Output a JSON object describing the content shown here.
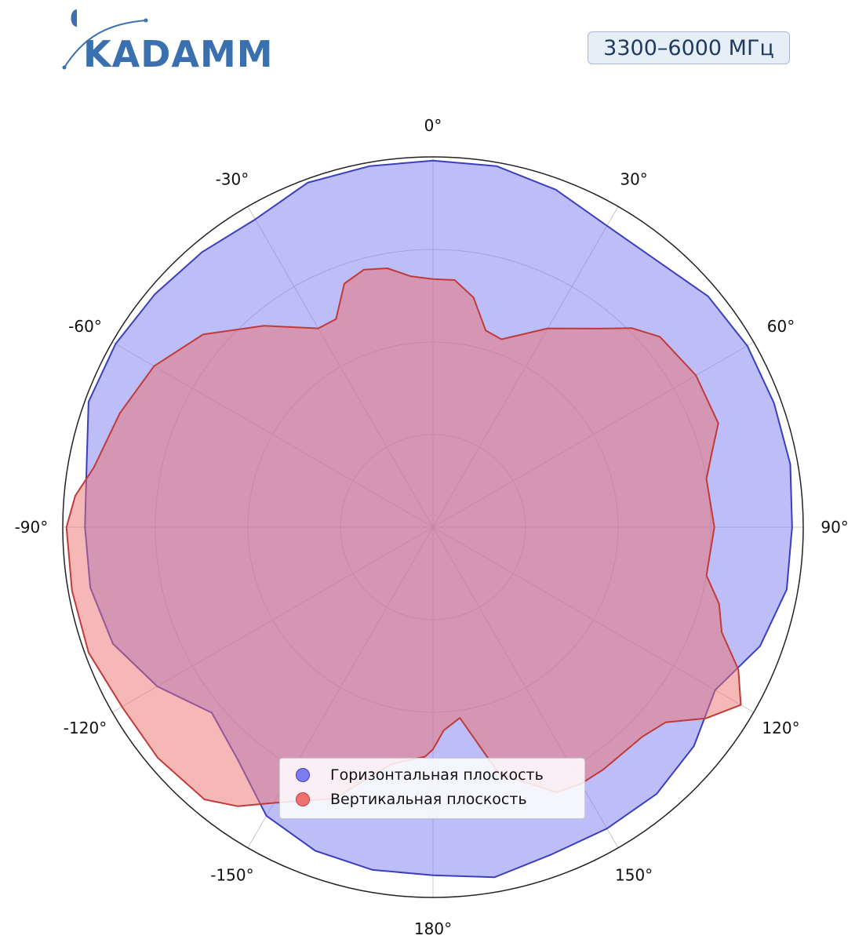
{
  "brand": {
    "name": "KADAMM",
    "color": "#3a6fb0"
  },
  "badge": {
    "text": "3300–6000 МГц"
  },
  "chart_data": {
    "type": "polar-area",
    "angle_ticks": [
      {
        "deg": 0,
        "label": "0°"
      },
      {
        "deg": 30,
        "label": "30°"
      },
      {
        "deg": 60,
        "label": "60°"
      },
      {
        "deg": 90,
        "label": "90°"
      },
      {
        "deg": 120,
        "label": "120°"
      },
      {
        "deg": 150,
        "label": "150°"
      },
      {
        "deg": 180,
        "label": "180°"
      },
      {
        "deg": -150,
        "label": "-150°"
      },
      {
        "deg": -120,
        "label": "-120°"
      },
      {
        "deg": -90,
        "label": "-90°"
      },
      {
        "deg": -60,
        "label": "-60°"
      },
      {
        "deg": -30,
        "label": "-30°"
      }
    ],
    "radial_rings": [
      0.25,
      0.5,
      0.75,
      1.0
    ],
    "radial_labels_shown": false,
    "series": [
      {
        "name": "Горизонтальная плоскость",
        "color": "#7b7cf0",
        "edge": "#3a3fbf",
        "points": [
          [
            0,
            0.99
          ],
          [
            10,
            0.99
          ],
          [
            20,
            0.97
          ],
          [
            30,
            0.94
          ],
          [
            40,
            0.94
          ],
          [
            50,
            0.97
          ],
          [
            60,
            0.98
          ],
          [
            70,
            0.98
          ],
          [
            80,
            0.98
          ],
          [
            90,
            0.97
          ],
          [
            100,
            0.97
          ],
          [
            110,
            0.94
          ],
          [
            120,
            0.88
          ],
          [
            130,
            0.92
          ],
          [
            140,
            0.94
          ],
          [
            150,
            0.94
          ],
          [
            160,
            0.94
          ],
          [
            170,
            0.96
          ],
          [
            180,
            0.94
          ],
          [
            -170,
            0.94
          ],
          [
            -160,
            0.93
          ],
          [
            -150,
            0.9
          ],
          [
            -140,
            0.82
          ],
          [
            -130,
            0.78
          ],
          [
            -120,
            0.86
          ],
          [
            -110,
            0.92
          ],
          [
            -100,
            0.94
          ],
          [
            -90,
            0.94
          ],
          [
            -80,
            0.95
          ],
          [
            -70,
            0.99
          ],
          [
            -60,
            0.99
          ],
          [
            -50,
            0.98
          ],
          [
            -40,
            0.97
          ],
          [
            -30,
            0.96
          ],
          [
            -20,
            0.99
          ],
          [
            -10,
            0.99
          ]
        ]
      },
      {
        "name": "Вертикальная плоскость",
        "color": "#ee7070",
        "edge": "#c03a3a",
        "points": [
          [
            0,
            0.67
          ],
          [
            5,
            0.67
          ],
          [
            10,
            0.63
          ],
          [
            15,
            0.55
          ],
          [
            20,
            0.54
          ],
          [
            30,
            0.62
          ],
          [
            40,
            0.7
          ],
          [
            45,
            0.76
          ],
          [
            50,
            0.8
          ],
          [
            60,
            0.82
          ],
          [
            70,
            0.82
          ],
          [
            75,
            0.78
          ],
          [
            80,
            0.75
          ],
          [
            90,
            0.76
          ],
          [
            100,
            0.75
          ],
          [
            105,
            0.8
          ],
          [
            110,
            0.83
          ],
          [
            115,
            0.91
          ],
          [
            120,
            0.96
          ],
          [
            125,
            0.9
          ],
          [
            130,
            0.82
          ],
          [
            135,
            0.8
          ],
          [
            145,
            0.8
          ],
          [
            150,
            0.8
          ],
          [
            155,
            0.79
          ],
          [
            165,
            0.69
          ],
          [
            172,
            0.52
          ],
          [
            177,
            0.55
          ],
          [
            180,
            0.6
          ],
          [
            -178,
            0.62
          ],
          [
            -170,
            0.65
          ],
          [
            -160,
            0.78
          ],
          [
            -150,
            0.86
          ],
          [
            -145,
            0.92
          ],
          [
            -140,
            0.96
          ],
          [
            -130,
            0.97
          ],
          [
            -120,
            0.97
          ],
          [
            -110,
            0.99
          ],
          [
            -100,
            0.99
          ],
          [
            -90,
            0.99
          ],
          [
            -85,
            0.97
          ],
          [
            -80,
            0.93
          ],
          [
            -70,
            0.9
          ],
          [
            -60,
            0.87
          ],
          [
            -50,
            0.81
          ],
          [
            -40,
            0.71
          ],
          [
            -30,
            0.62
          ],
          [
            -25,
            0.62
          ],
          [
            -20,
            0.7
          ],
          [
            -15,
            0.72
          ],
          [
            -10,
            0.71
          ],
          [
            -5,
            0.68
          ]
        ]
      }
    ],
    "legend": {
      "placement": "bottom-center"
    }
  }
}
